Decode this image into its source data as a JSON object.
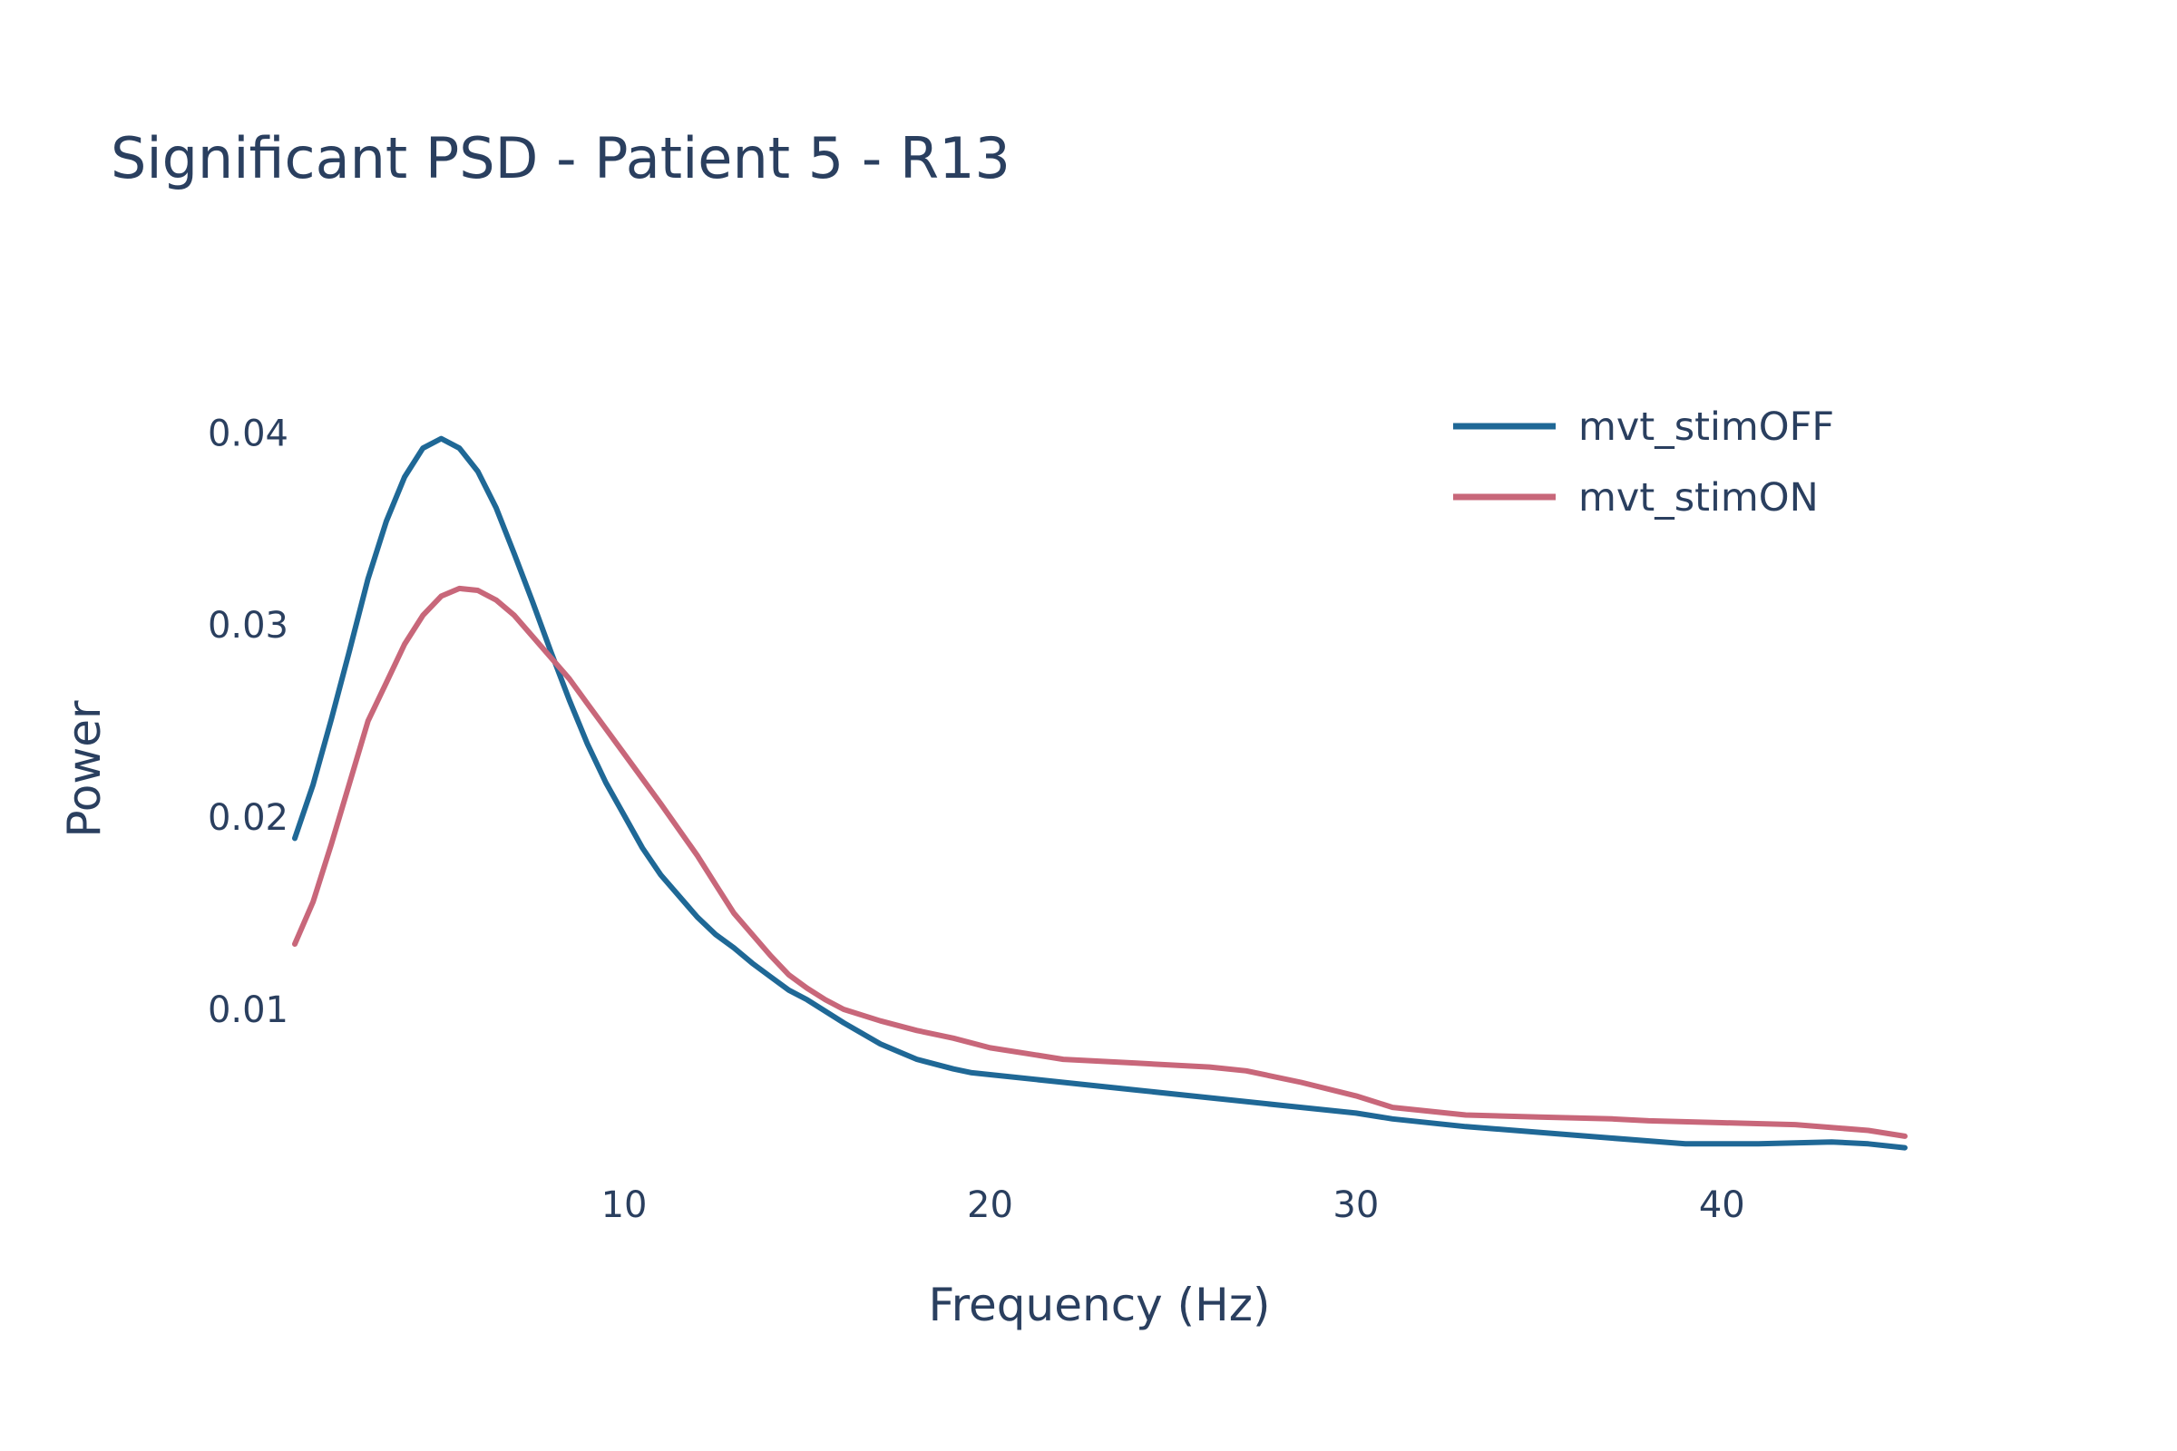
{
  "chart_data": {
    "type": "line",
    "title": "Significant PSD - Patient 5 - R13",
    "xlabel": "Frequency (Hz)",
    "ylabel": "Power",
    "xlim": [
      1,
      45
    ],
    "ylim": [
      0.0016,
      0.0436
    ],
    "x_ticks": [
      10,
      20,
      30,
      40
    ],
    "x_tick_labels": [
      "10",
      "20",
      "30",
      "40"
    ],
    "y_ticks": [
      0.01,
      0.02,
      0.03,
      0.04
    ],
    "y_tick_labels": [
      "0.01",
      "0.02",
      "0.03",
      "0.04"
    ],
    "grid": false,
    "legend_position": "top-right",
    "series": [
      {
        "name": "mvt_stimOFF",
        "color": "#1f6896",
        "x": [
          1.0,
          1.5,
          2.0,
          2.5,
          3.0,
          3.5,
          4.0,
          4.5,
          5.0,
          5.5,
          6.0,
          6.5,
          7.0,
          7.5,
          8.0,
          8.5,
          9.0,
          9.5,
          10.0,
          10.5,
          11.0,
          11.5,
          12.0,
          12.5,
          13.0,
          13.5,
          14.0,
          14.5,
          15.0,
          16.0,
          17.0,
          17.5,
          18.0,
          19.0,
          19.5,
          20.0,
          22.0,
          24.0,
          26.0,
          28.0,
          30.0,
          31.0,
          33.0,
          35.0,
          37.0,
          39.0,
          41.0,
          43.0,
          44.0,
          45.0
        ],
        "y": [
          0.0189,
          0.0217,
          0.0251,
          0.0287,
          0.0324,
          0.0354,
          0.0377,
          0.0392,
          0.0397,
          0.0392,
          0.038,
          0.0361,
          0.0337,
          0.0312,
          0.0286,
          0.0261,
          0.0238,
          0.0218,
          0.0201,
          0.0184,
          0.017,
          0.0159,
          0.0148,
          0.0139,
          0.0132,
          0.0124,
          0.0117,
          0.011,
          0.0105,
          0.0093,
          0.0082,
          0.0078,
          0.0074,
          0.0069,
          0.0067,
          0.0066,
          0.0062,
          0.0058,
          0.0054,
          0.005,
          0.0046,
          0.0043,
          0.0039,
          0.0036,
          0.0033,
          0.003,
          0.003,
          0.0031,
          0.003,
          0.0028
        ]
      },
      {
        "name": "mvt_stimON",
        "color": "#c8677a",
        "x": [
          1.0,
          1.5,
          2.0,
          2.5,
          3.0,
          3.5,
          4.0,
          4.5,
          5.0,
          5.5,
          6.0,
          6.5,
          7.0,
          7.5,
          8.0,
          8.5,
          9.0,
          9.5,
          10.0,
          11.0,
          12.0,
          12.5,
          13.0,
          14.0,
          14.5,
          15.0,
          15.5,
          16.0,
          17.0,
          18.0,
          19.0,
          20.0,
          21.0,
          22.0,
          24.0,
          26.0,
          27.0,
          28.5,
          30.0,
          31.0,
          33.0,
          35.0,
          37.0,
          38.0,
          40.0,
          42.0,
          44.0,
          45.0
        ],
        "y": [
          0.0134,
          0.0156,
          0.0186,
          0.0218,
          0.025,
          0.027,
          0.029,
          0.0305,
          0.0315,
          0.0319,
          0.0318,
          0.0313,
          0.0305,
          0.0294,
          0.0283,
          0.0272,
          0.0259,
          0.0246,
          0.0233,
          0.0207,
          0.018,
          0.0165,
          0.015,
          0.0128,
          0.0118,
          0.0111,
          0.0105,
          0.01,
          0.0094,
          0.0089,
          0.0085,
          0.008,
          0.0077,
          0.0074,
          0.0072,
          0.007,
          0.0068,
          0.0062,
          0.0055,
          0.0049,
          0.0045,
          0.0044,
          0.0043,
          0.0042,
          0.0041,
          0.004,
          0.0037,
          0.0034
        ]
      }
    ]
  }
}
